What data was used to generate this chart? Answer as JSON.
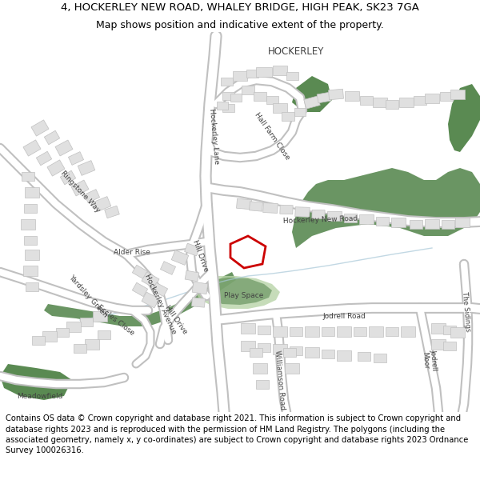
{
  "title_line1": "4, HOCKERLEY NEW ROAD, WHALEY BRIDGE, HIGH PEAK, SK23 7GA",
  "title_line2": "Map shows position and indicative extent of the property.",
  "footer": "Contains OS data © Crown copyright and database right 2021. This information is subject to Crown copyright and database rights 2023 and is reproduced with the permission of HM Land Registry. The polygons (including the associated geometry, namely x, y co-ordinates) are subject to Crown copyright and database rights 2023 Ordnance Survey 100026316.",
  "title_fontsize": 9.5,
  "footer_fontsize": 7.2,
  "bg_color": "#ffffff",
  "map_bg": "#ffffff",
  "road_color": "#ffffff",
  "road_outline": "#c8c8c8",
  "building_color": "#e0e0e0",
  "building_outline": "#c0c0c0",
  "green_dark": "#5a8a52",
  "green_light": "#b8d4a8",
  "plot_outline": "#cc0000",
  "plot_fill": "#ffffff"
}
